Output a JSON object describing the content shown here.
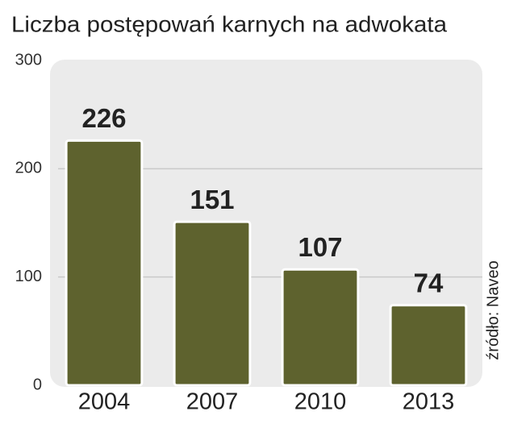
{
  "chart_data": {
    "type": "bar",
    "title": "Liczba postępowań karnych na adwokata",
    "categories": [
      "2004",
      "2007",
      "2010",
      "2013"
    ],
    "values": [
      226,
      151,
      107,
      74
    ],
    "color": "#5e622e",
    "ylim": [
      0,
      300
    ],
    "yticks": [
      0,
      100,
      200,
      300
    ],
    "grid": true,
    "source": "źródło: Naveo"
  }
}
